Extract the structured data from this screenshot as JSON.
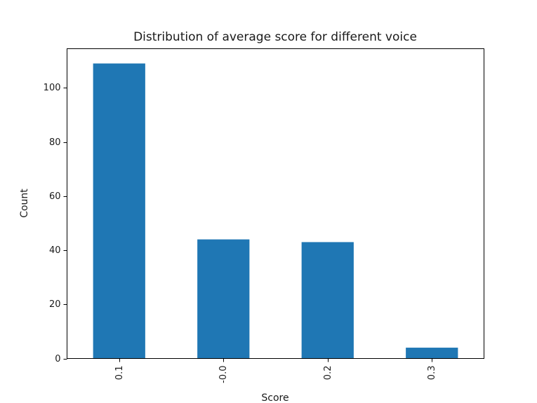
{
  "chart_data": {
    "type": "bar",
    "title": "Distribution of average score for different voice",
    "xlabel": "Score",
    "ylabel": "Count",
    "categories": [
      "0.1",
      "-0.0",
      "0.2",
      "0.3"
    ],
    "values": [
      109,
      44,
      43,
      4
    ],
    "ylim": [
      0,
      114.45
    ],
    "yticks": [
      0,
      20,
      40,
      60,
      80,
      100
    ],
    "ytick_labels": [
      "0",
      "20",
      "40",
      "60",
      "80",
      "100"
    ],
    "bar_color": "#1f77b4",
    "grid": false,
    "xtick_rotation": "vertical"
  }
}
